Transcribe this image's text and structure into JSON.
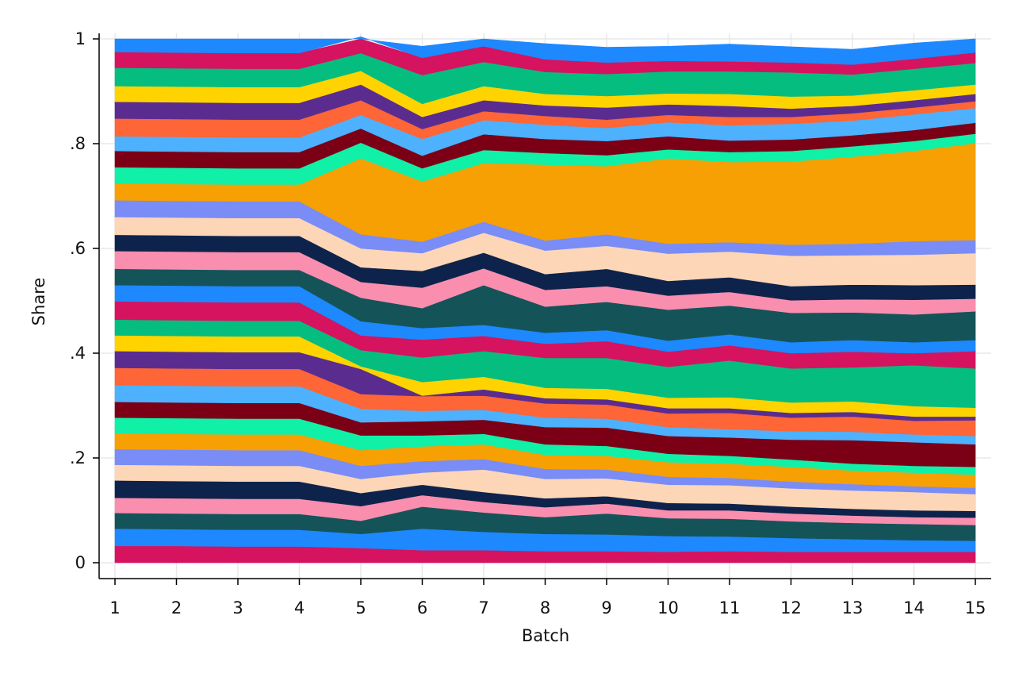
{
  "chart_data": {
    "type": "area",
    "stacked": true,
    "xlabel": "Batch",
    "ylabel": "Share",
    "xlim": [
      1,
      15
    ],
    "ylim": [
      0,
      1
    ],
    "x": [
      1,
      2,
      3,
      4,
      5,
      6,
      7,
      8,
      9,
      10,
      11,
      12,
      13,
      14,
      15
    ],
    "x_ticks": [
      "1",
      "2",
      "3",
      "4",
      "5",
      "6",
      "7",
      "8",
      "9",
      "10",
      "11",
      "12",
      "13",
      "14",
      "15"
    ],
    "y_ticks": [
      {
        "value": 0,
        "label": "0"
      },
      {
        "value": 0.2,
        "label": ".2"
      },
      {
        "value": 0.4,
        "label": ".4"
      },
      {
        "value": 0.6,
        "label": ".6"
      },
      {
        "value": 0.8,
        "label": ".8"
      },
      {
        "value": 1,
        "label": "1"
      }
    ],
    "grid": true,
    "legend": "none",
    "series": [
      {
        "color": "#d5135f",
        "values": [
          0.032,
          0.032,
          0.031,
          0.031,
          0.028,
          0.024,
          0.024,
          0.022,
          0.022,
          0.021,
          0.022,
          0.021,
          0.021,
          0.021,
          0.021
        ]
      },
      {
        "color": "#1e88ff",
        "values": [
          0.033,
          0.032,
          0.032,
          0.032,
          0.027,
          0.041,
          0.035,
          0.033,
          0.032,
          0.03,
          0.028,
          0.026,
          0.024,
          0.022,
          0.021
        ]
      },
      {
        "color": "#145459",
        "values": [
          0.03,
          0.03,
          0.03,
          0.03,
          0.025,
          0.042,
          0.037,
          0.032,
          0.04,
          0.034,
          0.034,
          0.032,
          0.031,
          0.031,
          0.03
        ]
      },
      {
        "color": "#f98eaf",
        "values": [
          0.029,
          0.029,
          0.029,
          0.029,
          0.028,
          0.022,
          0.02,
          0.019,
          0.019,
          0.015,
          0.016,
          0.015,
          0.014,
          0.013,
          0.014
        ]
      },
      {
        "color": "#0e234b",
        "values": [
          0.033,
          0.033,
          0.033,
          0.033,
          0.025,
          0.02,
          0.019,
          0.017,
          0.014,
          0.014,
          0.013,
          0.013,
          0.013,
          0.013,
          0.013
        ]
      },
      {
        "color": "#fdd6b7",
        "values": [
          0.03,
          0.03,
          0.03,
          0.03,
          0.027,
          0.023,
          0.043,
          0.037,
          0.034,
          0.035,
          0.035,
          0.035,
          0.035,
          0.035,
          0.032
        ]
      },
      {
        "color": "#7a8cf6",
        "values": [
          0.03,
          0.03,
          0.03,
          0.03,
          0.025,
          0.022,
          0.02,
          0.019,
          0.017,
          0.015,
          0.014,
          0.013,
          0.012,
          0.011,
          0.012
        ]
      },
      {
        "color": "#f7a003",
        "values": [
          0.03,
          0.03,
          0.03,
          0.03,
          0.03,
          0.028,
          0.028,
          0.027,
          0.026,
          0.028,
          0.027,
          0.028,
          0.026,
          0.026,
          0.025
        ]
      },
      {
        "color": "#10f0a7",
        "values": [
          0.03,
          0.03,
          0.03,
          0.03,
          0.028,
          0.021,
          0.02,
          0.02,
          0.019,
          0.016,
          0.015,
          0.014,
          0.013,
          0.013,
          0.015
        ]
      },
      {
        "color": "#7b0016",
        "values": [
          0.03,
          0.03,
          0.03,
          0.03,
          0.025,
          0.027,
          0.027,
          0.033,
          0.035,
          0.034,
          0.035,
          0.038,
          0.045,
          0.045,
          0.043
        ]
      },
      {
        "color": "#4db1fd",
        "values": [
          0.032,
          0.032,
          0.032,
          0.032,
          0.026,
          0.02,
          0.019,
          0.018,
          0.017,
          0.017,
          0.016,
          0.016,
          0.016,
          0.015,
          0.016
        ]
      },
      {
        "color": "#fe6537",
        "values": [
          0.033,
          0.033,
          0.033,
          0.033,
          0.028,
          0.028,
          0.027,
          0.027,
          0.027,
          0.026,
          0.031,
          0.026,
          0.029,
          0.026,
          0.03
        ]
      },
      {
        "color": "#5b2c90",
        "values": [
          0.032,
          0.032,
          0.032,
          0.032,
          0.048,
          0.001,
          0.012,
          0.01,
          0.01,
          0.01,
          0.009,
          0.009,
          0.009,
          0.008,
          0.007
        ]
      },
      {
        "color": "#ffd300",
        "values": [
          0.03,
          0.03,
          0.03,
          0.03,
          0.005,
          0.026,
          0.024,
          0.02,
          0.02,
          0.02,
          0.021,
          0.02,
          0.02,
          0.02,
          0.017
        ]
      },
      {
        "color": "#05bd7e",
        "values": [
          0.03,
          0.03,
          0.03,
          0.03,
          0.031,
          0.047,
          0.049,
          0.057,
          0.059,
          0.059,
          0.07,
          0.065,
          0.065,
          0.078,
          0.075
        ]
      },
      {
        "color": "#d5135f",
        "values": [
          0.035,
          0.035,
          0.035,
          0.035,
          0.028,
          0.034,
          0.029,
          0.027,
          0.032,
          0.029,
          0.029,
          0.029,
          0.03,
          0.023,
          0.033
        ]
      },
      {
        "color": "#1e88ff",
        "values": [
          0.031,
          0.031,
          0.031,
          0.031,
          0.027,
          0.022,
          0.021,
          0.021,
          0.021,
          0.021,
          0.021,
          0.021,
          0.022,
          0.021,
          0.021
        ]
      },
      {
        "color": "#145459",
        "values": [
          0.031,
          0.031,
          0.031,
          0.031,
          0.045,
          0.038,
          0.076,
          0.05,
          0.054,
          0.059,
          0.055,
          0.056,
          0.053,
          0.053,
          0.055
        ]
      },
      {
        "color": "#f98eaf",
        "values": [
          0.034,
          0.034,
          0.034,
          0.034,
          0.03,
          0.039,
          0.032,
          0.032,
          0.03,
          0.027,
          0.026,
          0.024,
          0.025,
          0.028,
          0.024
        ]
      },
      {
        "color": "#0e234b",
        "values": [
          0.031,
          0.031,
          0.031,
          0.031,
          0.028,
          0.032,
          0.03,
          0.03,
          0.033,
          0.028,
          0.028,
          0.027,
          0.028,
          0.028,
          0.027
        ]
      },
      {
        "color": "#fdd6b7",
        "values": [
          0.034,
          0.034,
          0.034,
          0.034,
          0.036,
          0.034,
          0.038,
          0.045,
          0.044,
          0.052,
          0.049,
          0.058,
          0.056,
          0.058,
          0.06
        ]
      },
      {
        "color": "#7a8cf6",
        "values": [
          0.032,
          0.032,
          0.032,
          0.032,
          0.027,
          0.022,
          0.021,
          0.019,
          0.022,
          0.019,
          0.018,
          0.021,
          0.022,
          0.026,
          0.025
        ]
      },
      {
        "color": "#f7a003",
        "values": [
          0.032,
          0.032,
          0.032,
          0.032,
          0.145,
          0.115,
          0.112,
          0.145,
          0.13,
          0.163,
          0.153,
          0.159,
          0.166,
          0.172,
          0.185
        ]
      },
      {
        "color": "#10f0a7",
        "values": [
          0.031,
          0.031,
          0.031,
          0.031,
          0.03,
          0.025,
          0.025,
          0.022,
          0.021,
          0.017,
          0.019,
          0.02,
          0.02,
          0.019,
          0.018
        ]
      },
      {
        "color": "#7b0016",
        "values": [
          0.031,
          0.031,
          0.031,
          0.031,
          0.027,
          0.024,
          0.03,
          0.027,
          0.027,
          0.025,
          0.022,
          0.022,
          0.021,
          0.021,
          0.021
        ]
      },
      {
        "color": "#4db1fd",
        "values": [
          0.028,
          0.028,
          0.028,
          0.028,
          0.026,
          0.032,
          0.027,
          0.027,
          0.025,
          0.027,
          0.029,
          0.03,
          0.028,
          0.03,
          0.028
        ]
      },
      {
        "color": "#fe6537",
        "values": [
          0.034,
          0.034,
          0.034,
          0.034,
          0.028,
          0.019,
          0.017,
          0.017,
          0.016,
          0.014,
          0.016,
          0.013,
          0.014,
          0.013,
          0.013
        ]
      },
      {
        "color": "#5b2c90",
        "values": [
          0.032,
          0.032,
          0.032,
          0.032,
          0.03,
          0.023,
          0.021,
          0.02,
          0.023,
          0.02,
          0.021,
          0.016,
          0.014,
          0.014,
          0.014
        ]
      },
      {
        "color": "#ffd300",
        "values": [
          0.03,
          0.03,
          0.03,
          0.03,
          0.026,
          0.025,
          0.027,
          0.022,
          0.022,
          0.021,
          0.023,
          0.023,
          0.02,
          0.019,
          0.018
        ]
      },
      {
        "color": "#05bd7e",
        "values": [
          0.035,
          0.035,
          0.035,
          0.035,
          0.034,
          0.055,
          0.046,
          0.042,
          0.042,
          0.042,
          0.043,
          0.046,
          0.04,
          0.041,
          0.041
        ]
      },
      {
        "color": "#d5135f",
        "values": [
          0.03,
          0.03,
          0.03,
          0.03,
          0.031,
          0.033,
          0.03,
          0.024,
          0.022,
          0.02,
          0.019,
          0.019,
          0.019,
          0.019,
          0.02
        ]
      },
      {
        "color": "#1e88ff",
        "values": [
          0.032,
          0.032,
          0.032,
          0.032,
          0.03,
          0.022,
          0.031,
          0.03,
          0.029,
          0.028,
          0.033,
          0.03,
          0.029,
          0.03,
          0.028
        ]
      }
    ]
  }
}
